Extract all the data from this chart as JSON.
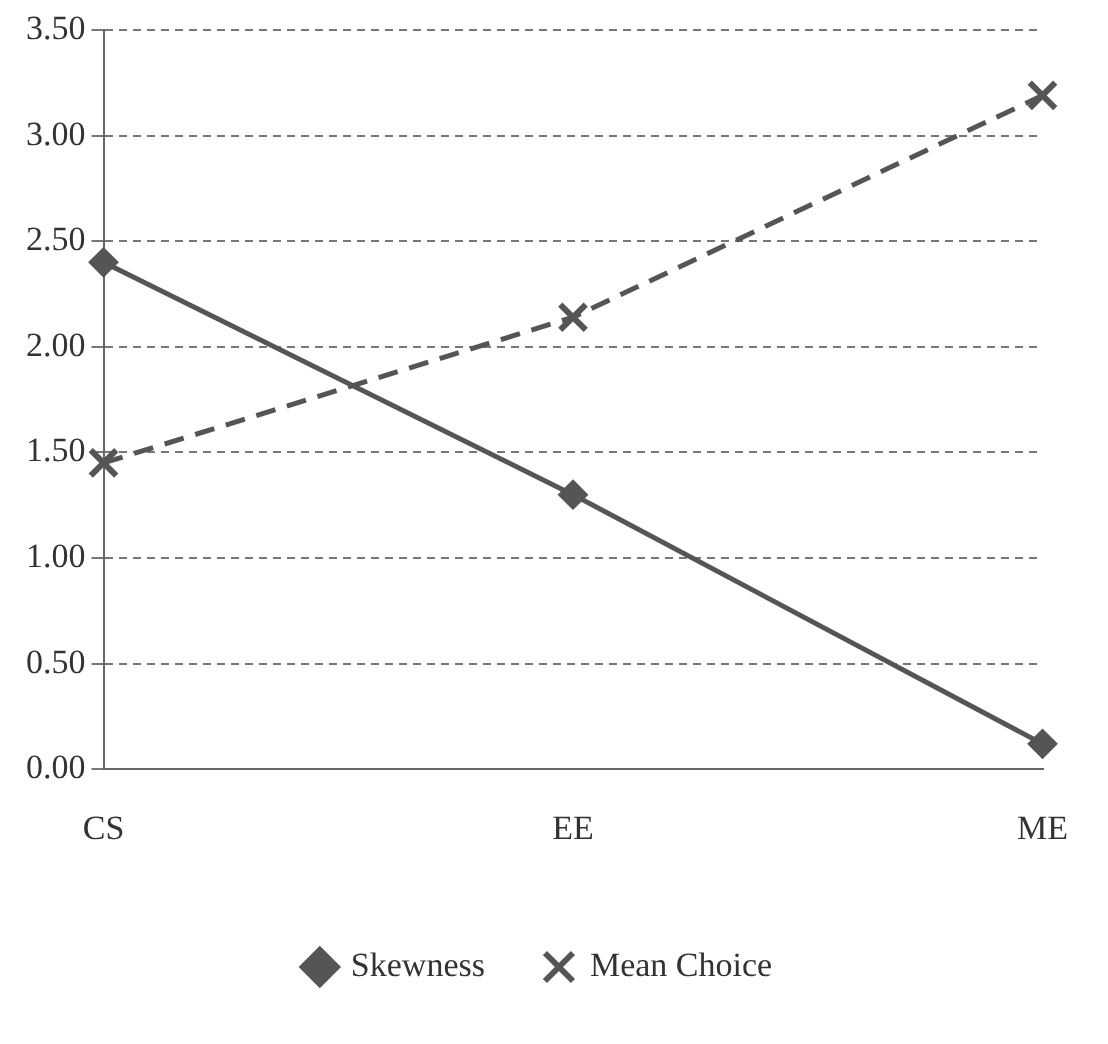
{
  "chart_data": {
    "type": "line",
    "categories": [
      "CS",
      "EE",
      "ME"
    ],
    "series": [
      {
        "name": "Skewness",
        "color": "#555555",
        "values": [
          2.4,
          1.3,
          0.12
        ],
        "marker": "diamond",
        "line_style": "solid"
      },
      {
        "name": "Mean Choice",
        "color": "#555555",
        "values": [
          1.45,
          2.14,
          3.19
        ],
        "marker": "cross",
        "line_style": "dashed"
      }
    ],
    "ylim": [
      0,
      3.5
    ],
    "yticks": [
      {
        "value": 0,
        "label": "0.00"
      },
      {
        "value": 0.5,
        "label": "0.50"
      },
      {
        "value": 1,
        "label": "1.00"
      },
      {
        "value": 1.5,
        "label": "1.50"
      },
      {
        "value": 2,
        "label": "2.00"
      },
      {
        "value": 2.5,
        "label": "2.50"
      },
      {
        "value": 3,
        "label": "3.00"
      },
      {
        "value": 3.5,
        "label": "3.50"
      }
    ],
    "grid": "y",
    "legend": "bottom"
  }
}
